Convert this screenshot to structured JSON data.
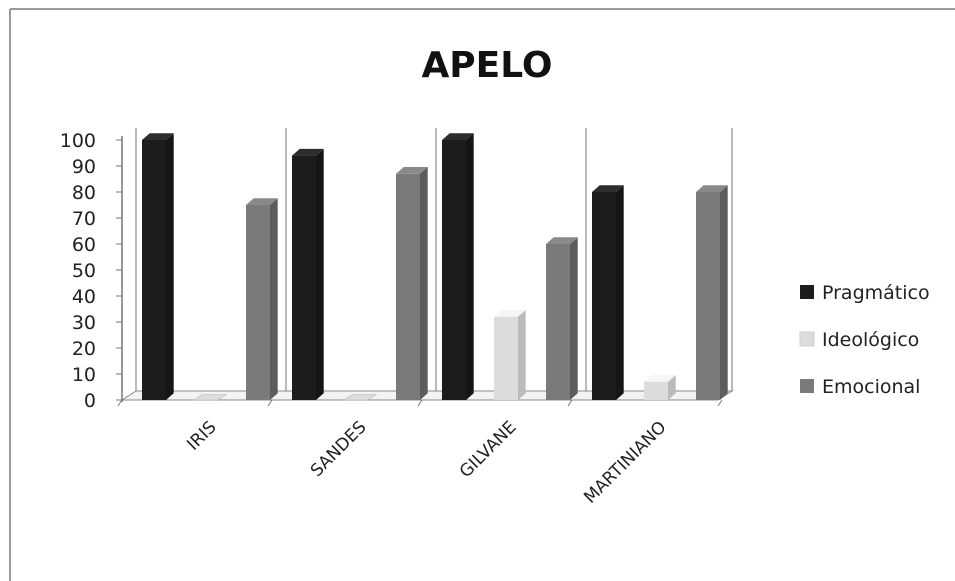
{
  "chart_data": {
    "type": "bar",
    "title": "APELO",
    "categories": [
      "IRIS",
      "SANDES",
      "GILVANE",
      "MARTINIANO"
    ],
    "series": [
      {
        "name": "Pragmático",
        "color": "#1c1c1c",
        "values": [
          100,
          94,
          100,
          80
        ]
      },
      {
        "name": "Ideológico",
        "color": "#dcdcdc",
        "values": [
          0,
          0,
          32,
          7
        ]
      },
      {
        "name": "Emocional",
        "color": "#7a7a7a",
        "values": [
          75,
          87,
          60,
          80
        ]
      }
    ],
    "ylim": [
      0,
      100
    ],
    "yticks": [
      0,
      10,
      20,
      30,
      40,
      50,
      60,
      70,
      80,
      90,
      100
    ],
    "legend_position": "right",
    "grid": false
  }
}
